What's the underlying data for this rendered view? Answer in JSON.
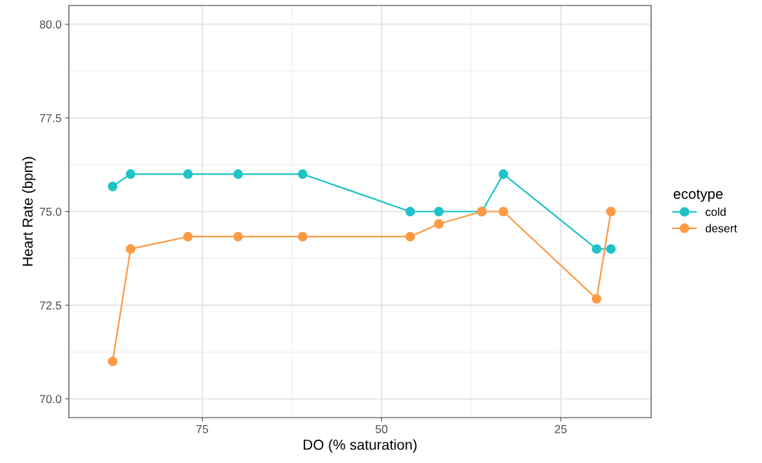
{
  "chart_data": {
    "type": "line",
    "xlabel": "DO (% saturation)",
    "ylabel": "Heart Rate (bpm)",
    "legend_title": "ecotype",
    "legend": "right",
    "marker": "circle",
    "grid": true,
    "x": [
      87.5,
      85,
      77,
      70,
      61,
      46,
      42,
      36,
      33,
      20,
      18
    ],
    "series": [
      {
        "name": "cold",
        "color": "#1fc3c7",
        "values": [
          75.67,
          76,
          76,
          76,
          76,
          75,
          75,
          75,
          76,
          74,
          74
        ]
      },
      {
        "name": "desert",
        "color": "#fd9a43",
        "values": [
          71,
          74,
          74.33,
          74.33,
          74.33,
          74.33,
          74.67,
          75,
          75,
          72.67,
          75
        ]
      }
    ],
    "xlim": [
      93.6,
      12.4
    ],
    "xticks": [
      75,
      50,
      25
    ],
    "ylim": [
      69.5,
      80.5
    ],
    "yticks": [
      {
        "value": 70,
        "label": "70.0"
      },
      {
        "value": 72.5,
        "label": "72.5"
      },
      {
        "value": 75,
        "label": "75.0"
      },
      {
        "value": 77.5,
        "label": "77.5"
      },
      {
        "value": 80,
        "label": "80.0"
      }
    ]
  }
}
